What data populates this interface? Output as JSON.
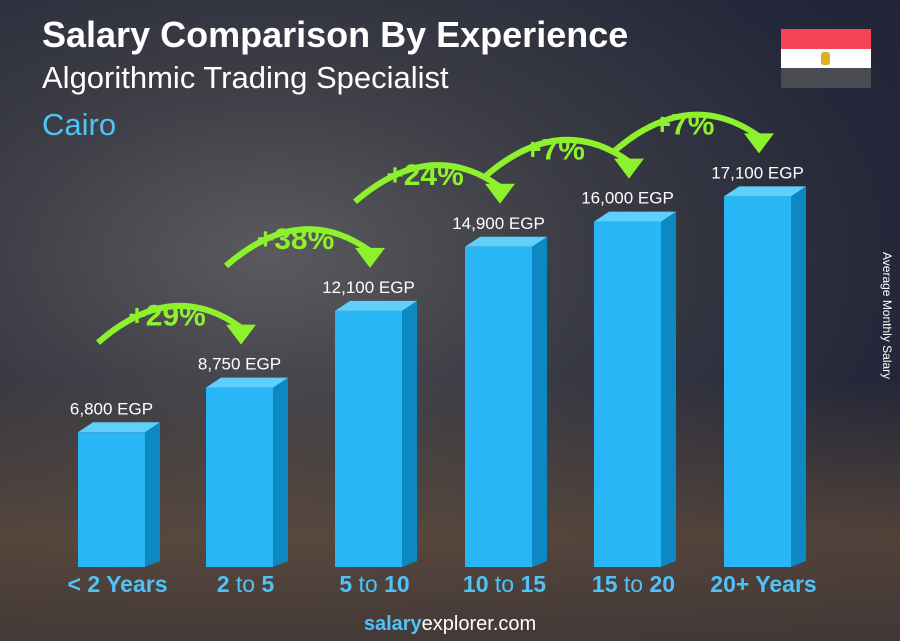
{
  "header": {
    "title": "Salary Comparison By Experience",
    "subtitle": "Algorithmic Trading Specialist",
    "city": "Cairo"
  },
  "flag": {
    "country": "Egypt",
    "colors": [
      "#f44455",
      "#ffffff",
      "#4a4a52"
    ]
  },
  "footer": {
    "brand_bold": "salary",
    "brand_rest": "explorer",
    "brand_tld": ".com"
  },
  "chart_data": {
    "type": "bar",
    "ylabel": "Average Monthly Salary",
    "categories": [
      [
        "< 2 Years",
        ""
      ],
      [
        "2",
        "to",
        "5"
      ],
      [
        "5",
        "to",
        "10"
      ],
      [
        "10",
        "to",
        "15"
      ],
      [
        "15",
        "to",
        "20"
      ],
      [
        "20+ Years",
        ""
      ]
    ],
    "category_labels": [
      "< 2 Years",
      "2 to 5",
      "5 to 10",
      "10 to 15",
      "15 to 20",
      "20+ Years"
    ],
    "values": [
      6800,
      8750,
      12100,
      14900,
      16000,
      17100
    ],
    "value_labels": [
      "6,800 EGP",
      "8,750 EGP",
      "12,100 EGP",
      "14,900 EGP",
      "16,000 EGP",
      "17,100 EGP"
    ],
    "changes": [
      "+29%",
      "+38%",
      "+24%",
      "+7%",
      "+7%"
    ],
    "colors": {
      "bar": "#29b6f6",
      "bar_side": "#0e88c2",
      "bar_top": "#5fd0fb",
      "change": "#8ef12e",
      "category": "#4fc3f7"
    }
  }
}
